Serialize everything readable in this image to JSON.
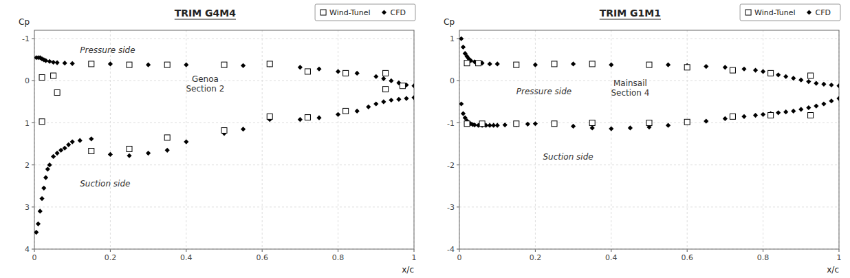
{
  "chart_data": [
    {
      "type": "scatter",
      "title": "TRIM G4M4",
      "xlabel": "x/c",
      "ylabel": "Cp",
      "annotations": [
        "Genoa\nSection 2",
        "Suction side",
        "Pressure side"
      ],
      "xlim": [
        0,
        1
      ],
      "xticks": [
        0,
        0.2,
        0.4,
        0.6,
        0.8,
        1
      ],
      "ylim": [
        4,
        -1.2
      ],
      "yticks": [
        4,
        3,
        2,
        1,
        0,
        -1
      ],
      "grid": true,
      "legend": "upper right",
      "series": [
        {
          "name": "Wind-Tunel",
          "marker": "square",
          "color": "black",
          "x": [
            0.02,
            0.06,
            0.15,
            0.25,
            0.35,
            0.5,
            0.62,
            0.72,
            0.82,
            0.925,
            0.97,
            0.02,
            0.05,
            0.15,
            0.25,
            0.35,
            0.5,
            0.62,
            0.72,
            0.82,
            0.925
          ],
          "values": [
            0.97,
            0.28,
            1.67,
            1.62,
            1.35,
            1.18,
            0.85,
            0.87,
            0.72,
            0.2,
            0.12,
            -0.08,
            -0.12,
            -0.4,
            -0.38,
            -0.38,
            -0.38,
            -0.4,
            -0.22,
            -0.18,
            -0.18
          ]
        },
        {
          "name": "CFD",
          "marker": "diamond",
          "color": "black",
          "x": [
            0.005,
            0.01,
            0.015,
            0.02,
            0.025,
            0.03,
            0.035,
            0.04,
            0.05,
            0.06,
            0.07,
            0.08,
            0.09,
            0.1,
            0.12,
            0.15,
            0.2,
            0.25,
            0.3,
            0.35,
            0.4,
            0.5,
            0.55,
            0.62,
            0.7,
            0.75,
            0.8,
            0.85,
            0.88,
            0.9,
            0.92,
            0.94,
            0.96,
            0.98,
            1.0,
            0.005,
            0.01,
            0.015,
            0.02,
            0.025,
            0.03,
            0.04,
            0.05,
            0.06,
            0.08,
            0.1,
            0.15,
            0.2,
            0.25,
            0.3,
            0.35,
            0.4,
            0.5,
            0.55,
            0.62,
            0.7,
            0.75,
            0.8,
            0.85,
            0.9,
            0.92,
            0.94,
            0.96,
            0.98,
            1.0
          ],
          "values": [
            3.6,
            3.4,
            3.1,
            2.8,
            2.55,
            2.3,
            2.1,
            2.0,
            1.8,
            1.72,
            1.65,
            1.6,
            1.52,
            1.45,
            1.42,
            1.38,
            1.75,
            1.78,
            1.72,
            1.65,
            1.45,
            1.25,
            1.15,
            0.92,
            0.92,
            0.88,
            0.8,
            0.72,
            0.62,
            0.55,
            0.5,
            0.46,
            0.44,
            0.42,
            0.4,
            -0.55,
            -0.55,
            -0.55,
            -0.52,
            -0.5,
            -0.48,
            -0.46,
            -0.44,
            -0.43,
            -0.42,
            -0.41,
            -0.4,
            -0.4,
            -0.38,
            -0.38,
            -0.38,
            -0.38,
            -0.38,
            -0.36,
            -0.38,
            -0.32,
            -0.28,
            -0.22,
            -0.18,
            -0.1,
            -0.05,
            0.0,
            0.05,
            0.1,
            0.12
          ]
        }
      ]
    },
    {
      "type": "scatter",
      "title": "TRIM G1M1",
      "xlabel": "x/c",
      "ylabel": "Cp",
      "annotations": [
        "Mainsail\nSection 4",
        "Suction side",
        "Pressure side"
      ],
      "xlim": [
        0,
        1
      ],
      "xticks": [
        0,
        0.2,
        0.4,
        0.6,
        0.8,
        1
      ],
      "ylim": [
        -4,
        1.2
      ],
      "yticks": [
        -4,
        -3,
        -2,
        -1,
        0,
        1
      ],
      "grid": true,
      "legend": "upper right",
      "series": [
        {
          "name": "Wind-Tunel",
          "marker": "square",
          "color": "black",
          "x": [
            0.02,
            0.06,
            0.15,
            0.25,
            0.35,
            0.5,
            0.6,
            0.72,
            0.82,
            0.925,
            0.02,
            0.05,
            0.15,
            0.25,
            0.35,
            0.5,
            0.6,
            0.72,
            0.82,
            0.925
          ],
          "values": [
            -1.02,
            -1.02,
            -1.02,
            -1.02,
            -1.0,
            -1.0,
            -0.98,
            -0.85,
            -0.82,
            -0.82,
            0.42,
            0.42,
            0.38,
            0.4,
            0.4,
            0.38,
            0.32,
            0.25,
            0.18,
            0.12
          ]
        },
        {
          "name": "CFD",
          "marker": "diamond",
          "color": "black",
          "x": [
            0.005,
            0.01,
            0.015,
            0.02,
            0.025,
            0.03,
            0.035,
            0.04,
            0.05,
            0.06,
            0.07,
            0.08,
            0.09,
            0.1,
            0.12,
            0.15,
            0.18,
            0.2,
            0.25,
            0.3,
            0.35,
            0.4,
            0.45,
            0.5,
            0.55,
            0.6,
            0.65,
            0.7,
            0.75,
            0.78,
            0.8,
            0.82,
            0.84,
            0.86,
            0.88,
            0.9,
            0.92,
            0.94,
            0.96,
            0.98,
            1.0,
            0.005,
            0.01,
            0.015,
            0.02,
            0.025,
            0.03,
            0.04,
            0.05,
            0.06,
            0.08,
            0.1,
            0.15,
            0.2,
            0.25,
            0.3,
            0.35,
            0.4,
            0.5,
            0.55,
            0.6,
            0.65,
            0.7,
            0.75,
            0.78,
            0.8,
            0.82,
            0.84,
            0.86,
            0.88,
            0.9,
            0.92,
            0.94,
            0.96,
            0.98,
            1.0
          ],
          "values": [
            -0.55,
            -0.78,
            -0.88,
            -0.95,
            -1.0,
            -1.02,
            -1.04,
            -1.05,
            -1.06,
            -1.06,
            -1.06,
            -1.06,
            -1.06,
            -1.06,
            -1.05,
            -1.04,
            -1.03,
            -1.02,
            -1.02,
            -1.08,
            -1.12,
            -1.14,
            -1.12,
            -1.1,
            -1.06,
            -1.0,
            -0.96,
            -0.9,
            -0.85,
            -0.82,
            -0.8,
            -0.78,
            -0.76,
            -0.74,
            -0.72,
            -0.68,
            -0.64,
            -0.6,
            -0.55,
            -0.48,
            -0.42,
            1.0,
            0.8,
            0.65,
            0.58,
            0.52,
            0.48,
            0.45,
            0.43,
            0.42,
            0.4,
            0.4,
            0.38,
            0.38,
            0.4,
            0.4,
            0.4,
            0.38,
            0.38,
            0.38,
            0.36,
            0.34,
            0.32,
            0.28,
            0.25,
            0.22,
            0.18,
            0.14,
            0.1,
            0.06,
            0.02,
            -0.02,
            -0.06,
            -0.08,
            -0.1,
            -0.12
          ]
        }
      ]
    }
  ]
}
